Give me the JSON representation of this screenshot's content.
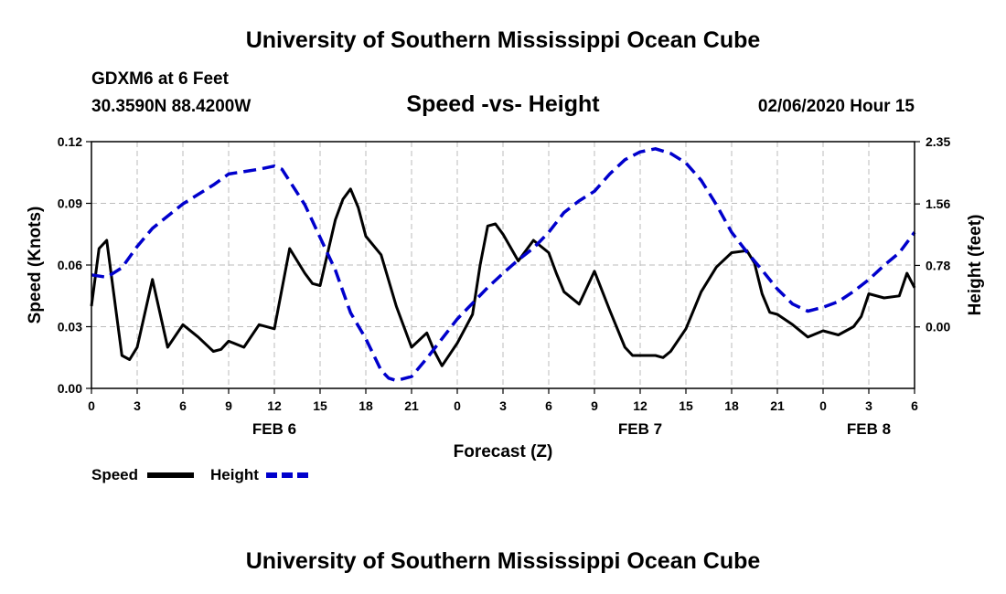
{
  "page": {
    "title_top": "University of Southern Mississippi Ocean Cube",
    "title_bottom": "University of Southern Mississippi Ocean Cube",
    "station": "GDXM6 at 6 Feet",
    "coords": "30.3590N 88.4200W",
    "subtitle": "Speed -vs- Height",
    "datetime": "02/06/2020 Hour 15"
  },
  "chart_data": {
    "type": "line",
    "title": "Speed -vs- Height",
    "xlabel": "Forecast (Z)",
    "ylabel": "Speed (Knots)",
    "y2label": "Height (feet)",
    "xlim": [
      0,
      54
    ],
    "ylim": [
      0,
      0.12
    ],
    "y2lim": [
      -0.78,
      2.35
    ],
    "x_ticks": [
      0,
      3,
      6,
      9,
      12,
      15,
      18,
      21,
      24,
      27,
      30,
      33,
      36,
      39,
      42,
      45,
      48,
      51,
      54
    ],
    "x_tick_labels": [
      "0",
      "3",
      "6",
      "9",
      "12",
      "15",
      "18",
      "21",
      "0",
      "3",
      "6",
      "9",
      "12",
      "15",
      "18",
      "21",
      "0",
      "3",
      "6"
    ],
    "y_ticks": [
      0,
      0.03,
      0.06,
      0.09,
      0.12
    ],
    "y_tick_labels": [
      "0.00",
      "0.03",
      "0.06",
      "0.09",
      "0.12"
    ],
    "y2_ticks": [
      0,
      0.78,
      1.56,
      2.35
    ],
    "y2_tick_labels": [
      "0.00",
      "0.78",
      "1.56",
      "2.35"
    ],
    "date_labels": [
      {
        "x": 12,
        "label": "FEB 6"
      },
      {
        "x": 36,
        "label": "FEB 7"
      },
      {
        "x": 51,
        "label": "FEB 8"
      }
    ],
    "grid": true,
    "legend_position": "bottom-left",
    "series": [
      {
        "name": "Speed",
        "axis": "left",
        "color": "#000000",
        "dash": "solid",
        "x": [
          0,
          0.5,
          1,
          2,
          2.5,
          3,
          4,
          5,
          6,
          7,
          8,
          8.5,
          9,
          10,
          11,
          12,
          13,
          13.5,
          14,
          14.5,
          15,
          16,
          16.5,
          17,
          17.5,
          18,
          19,
          20,
          21,
          22,
          22.5,
          23,
          24,
          25,
          25.5,
          26,
          26.5,
          27,
          28,
          29,
          30,
          30.5,
          31,
          32,
          33,
          34,
          35,
          35.5,
          36,
          37,
          37.5,
          38,
          39,
          40,
          41,
          42,
          43,
          43.5,
          44,
          44.5,
          45,
          46,
          47,
          48,
          49,
          50,
          50.5,
          51,
          52,
          53,
          53.5,
          54
        ],
        "y": [
          0.04,
          0.068,
          0.072,
          0.016,
          0.014,
          0.02,
          0.053,
          0.02,
          0.031,
          0.025,
          0.018,
          0.019,
          0.023,
          0.02,
          0.031,
          0.029,
          0.068,
          0.062,
          0.056,
          0.051,
          0.05,
          0.082,
          0.092,
          0.097,
          0.088,
          0.074,
          0.065,
          0.04,
          0.02,
          0.027,
          0.018,
          0.011,
          0.022,
          0.036,
          0.06,
          0.079,
          0.08,
          0.075,
          0.062,
          0.072,
          0.066,
          0.056,
          0.047,
          0.041,
          0.057,
          0.038,
          0.02,
          0.016,
          0.016,
          0.016,
          0.015,
          0.018,
          0.029,
          0.047,
          0.059,
          0.066,
          0.067,
          0.061,
          0.046,
          0.037,
          0.036,
          0.031,
          0.025,
          0.028,
          0.026,
          0.03,
          0.035,
          0.046,
          0.044,
          0.045,
          0.056,
          0.049
        ]
      },
      {
        "name": "Height",
        "axis": "right",
        "color": "#0000cc",
        "dash": "dashed",
        "x": [
          0,
          1,
          2,
          3,
          4,
          6,
          8,
          9,
          11,
          12,
          12.5,
          14,
          16,
          17,
          18,
          19,
          19.5,
          20,
          21,
          22,
          23,
          24,
          25,
          26,
          27,
          28,
          29,
          30,
          31,
          32,
          33,
          34,
          35,
          36,
          37,
          38,
          39,
          40,
          41,
          42,
          43,
          44,
          45,
          46,
          47,
          48,
          49,
          50,
          51,
          52,
          53,
          54
        ],
        "y": [
          0.66,
          0.63,
          0.75,
          1.02,
          1.25,
          1.56,
          1.8,
          1.94,
          2.0,
          2.04,
          2.0,
          1.55,
          0.72,
          0.18,
          -0.15,
          -0.55,
          -0.65,
          -0.68,
          -0.63,
          -0.4,
          -0.15,
          0.1,
          0.3,
          0.5,
          0.68,
          0.85,
          1.0,
          1.2,
          1.45,
          1.6,
          1.72,
          1.94,
          2.12,
          2.22,
          2.26,
          2.2,
          2.08,
          1.86,
          1.55,
          1.2,
          0.95,
          0.72,
          0.48,
          0.29,
          0.2,
          0.25,
          0.32,
          0.45,
          0.6,
          0.78,
          0.94,
          1.2
        ]
      }
    ]
  }
}
